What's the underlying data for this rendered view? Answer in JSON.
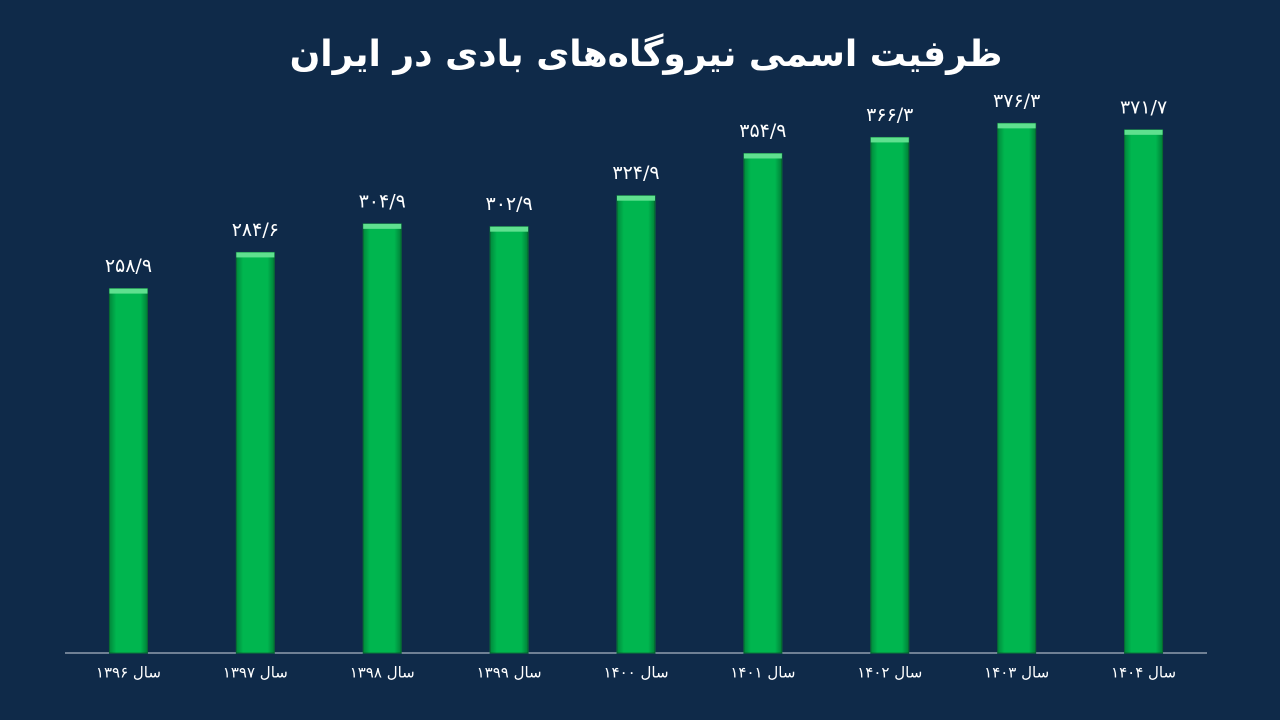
{
  "chart_data": {
    "type": "bar",
    "title": "ظرفیت اسمی نیروگاه‌های بادی در ایران",
    "categories": [
      "سال ۱۳۹۶",
      "سال ۱۳۹۷",
      "سال ۱۳۹۸",
      "سال ۱۳۹۹",
      "سال ۱۴۰۰",
      "سال ۱۴۰۱",
      "سال ۱۴۰۲",
      "سال ۱۴۰۳",
      "سال ۱۴۰۴"
    ],
    "values": [
      258.9,
      284.6,
      304.9,
      302.9,
      324.9,
      354.9,
      366.3,
      376.3,
      371.7
    ],
    "value_labels": [
      "۲۵۸/۹",
      "۲۸۴/۶",
      "۳۰۴/۹",
      "۳۰۲/۹",
      "۳۲۴/۹",
      "۳۵۴/۹",
      "۳۶۶/۳",
      "۳۷۶/۳",
      "۳۷۱/۷"
    ],
    "color": "#00b64f",
    "ylim": [
      0,
      400
    ]
  }
}
